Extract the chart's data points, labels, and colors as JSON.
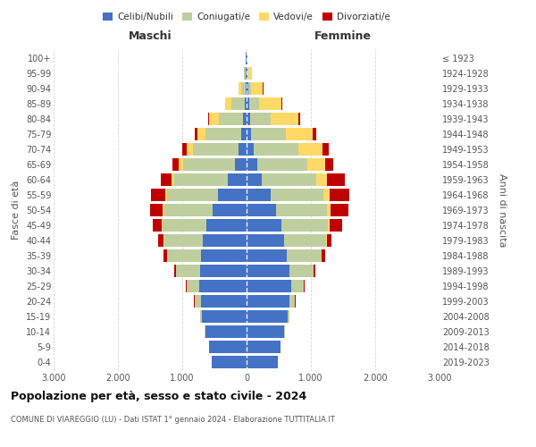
{
  "age_groups": [
    "0-4",
    "5-9",
    "10-14",
    "15-19",
    "20-24",
    "25-29",
    "30-34",
    "35-39",
    "40-44",
    "45-49",
    "50-54",
    "55-59",
    "60-64",
    "65-69",
    "70-74",
    "75-79",
    "80-84",
    "85-89",
    "90-94",
    "95-99",
    "100+"
  ],
  "birth_years": [
    "2019-2023",
    "2014-2018",
    "2009-2013",
    "2004-2008",
    "1999-2003",
    "1994-1998",
    "1989-1993",
    "1984-1988",
    "1979-1983",
    "1974-1978",
    "1969-1973",
    "1964-1968",
    "1959-1963",
    "1954-1958",
    "1949-1953",
    "1944-1948",
    "1939-1943",
    "1934-1938",
    "1929-1933",
    "1924-1928",
    "≤ 1923"
  ],
  "males": {
    "celibi": [
      540,
      580,
      640,
      690,
      710,
      730,
      720,
      710,
      680,
      620,
      530,
      440,
      290,
      180,
      120,
      80,
      50,
      30,
      20,
      15,
      10
    ],
    "coniugati": [
      2,
      5,
      10,
      30,
      100,
      200,
      380,
      520,
      600,
      680,
      750,
      800,
      830,
      800,
      720,
      560,
      380,
      200,
      60,
      20,
      5
    ],
    "vedovi": [
      0,
      0,
      0,
      0,
      2,
      2,
      3,
      5,
      10,
      15,
      20,
      30,
      40,
      70,
      90,
      120,
      150,
      100,
      40,
      10,
      2
    ],
    "divorziati": [
      0,
      0,
      0,
      2,
      5,
      10,
      20,
      50,
      80,
      150,
      200,
      220,
      180,
      100,
      70,
      40,
      20,
      10,
      5,
      2,
      0
    ]
  },
  "females": {
    "nubili": [
      490,
      530,
      590,
      640,
      660,
      690,
      660,
      620,
      590,
      540,
      460,
      370,
      240,
      160,
      110,
      75,
      50,
      35,
      25,
      15,
      10
    ],
    "coniugate": [
      2,
      4,
      10,
      25,
      90,
      200,
      380,
      540,
      640,
      720,
      790,
      830,
      840,
      780,
      700,
      530,
      330,
      160,
      50,
      15,
      3
    ],
    "vedove": [
      0,
      0,
      0,
      0,
      2,
      2,
      4,
      8,
      15,
      25,
      50,
      90,
      170,
      280,
      370,
      420,
      430,
      350,
      180,
      50,
      5
    ],
    "divorziate": [
      0,
      0,
      0,
      2,
      5,
      10,
      20,
      50,
      80,
      200,
      290,
      310,
      280,
      130,
      100,
      60,
      30,
      15,
      5,
      2,
      0
    ]
  },
  "colors": {
    "celibi": "#4472C4",
    "coniugati": "#BFCE9E",
    "vedovi": "#FFD966",
    "divorziati": "#C00000"
  },
  "xlim": 3000,
  "xticks": [
    -3000,
    -2000,
    -1000,
    0,
    1000,
    2000,
    3000
  ],
  "xlabels": [
    "3.000",
    "2.000",
    "1.000",
    "0",
    "1.000",
    "2.000",
    "3.000"
  ],
  "title": "Popolazione per età, sesso e stato civile - 2024",
  "subtitle": "COMUNE DI VIAREGGIO (LU) - Dati ISTAT 1° gennaio 2024 - Elaborazione TUTTITALIA.IT",
  "ylabel_left": "Fasce di età",
  "ylabel_right": "Anni di nascita",
  "xlabel_left": "Maschi",
  "xlabel_right": "Femmine",
  "legend_labels": [
    "Celibi/Nubili",
    "Coniugati/e",
    "Vedovi/e",
    "Divorziati/e"
  ],
  "background_color": "#ffffff",
  "grid_color": "#cccccc"
}
